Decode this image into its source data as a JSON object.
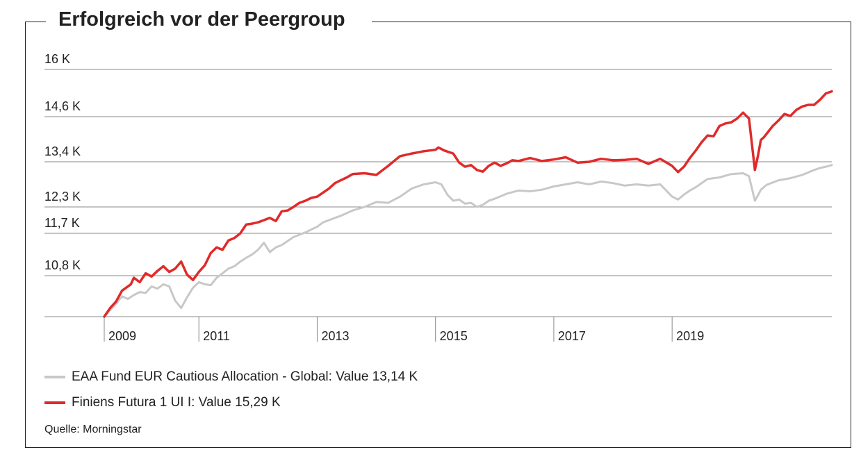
{
  "title": "Erfolgreich vor der Peergroup",
  "source": "Quelle: Morningstar",
  "colors": {
    "fund": "#e02a2a",
    "peer": "#c8c8c8",
    "grid": "#888888",
    "text": "#222222"
  },
  "legend": [
    {
      "label": "EAA Fund EUR Cautious Allocation - Global: Value 13,14 K",
      "color": "#c8c8c8"
    },
    {
      "label": "Finiens Futura 1 UI I: Value 15,29 K",
      "color": "#e02a2a"
    }
  ],
  "chart_data": {
    "type": "line",
    "y_ticks": [
      {
        "label": "10,8 K",
        "value": 10.8
      },
      {
        "label": "11,7 K",
        "value": 11.7
      },
      {
        "label": "12,3 K",
        "value": 12.3
      },
      {
        "label": "13,4 K",
        "value": 13.4
      },
      {
        "label": "14,6 K",
        "value": 14.6
      },
      {
        "label": "16 K",
        "value": 16.0
      }
    ],
    "x_ticks": [
      {
        "label": "2009",
        "value": 2009.0
      },
      {
        "label": "2011",
        "value": 2010.6
      },
      {
        "label": "2013",
        "value": 2012.6
      },
      {
        "label": "2015",
        "value": 2014.6
      },
      {
        "label": "2017",
        "value": 2016.6
      },
      {
        "label": "2019",
        "value": 2018.6
      }
    ],
    "xlim": [
      2009.0,
      2021.3
    ],
    "series": [
      {
        "name": "Finiens Futura 1 UI I",
        "color": "#e02a2a",
        "x": [
          2009.0,
          2009.1,
          2009.2,
          2009.3,
          2009.35,
          2009.45,
          2009.5,
          2009.6,
          2009.7,
          2009.8,
          2009.9,
          2010.0,
          2010.1,
          2010.2,
          2010.3,
          2010.4,
          2010.5,
          2010.6,
          2010.7,
          2010.8,
          2010.9,
          2011.0,
          2011.1,
          2011.2,
          2011.3,
          2011.4,
          2011.5,
          2011.6,
          2011.7,
          2011.8,
          2011.9,
          2012.0,
          2012.1,
          2012.2,
          2012.3,
          2012.4,
          2012.5,
          2012.6,
          2012.7,
          2012.8,
          2012.9,
          2013.0,
          2013.1,
          2013.2,
          2013.4,
          2013.6,
          2013.8,
          2014.0,
          2014.2,
          2014.4,
          2014.6,
          2014.65,
          2014.75,
          2014.9,
          2015.0,
          2015.1,
          2015.2,
          2015.3,
          2015.4,
          2015.5,
          2015.6,
          2015.7,
          2015.8,
          2015.9,
          2016.0,
          2016.2,
          2016.4,
          2016.6,
          2016.8,
          2017.0,
          2017.2,
          2017.4,
          2017.6,
          2017.8,
          2018.0,
          2018.2,
          2018.4,
          2018.6,
          2018.7,
          2018.8,
          2018.9,
          2019.0,
          2019.1,
          2019.2,
          2019.3,
          2019.4,
          2019.5,
          2019.6,
          2019.7,
          2019.8,
          2019.9,
          2020.0,
          2020.05,
          2020.1,
          2020.15,
          2020.2,
          2020.3,
          2020.4,
          2020.5,
          2020.6,
          2020.7,
          2020.8,
          2020.9,
          2021.0,
          2021.1,
          2021.2,
          2021.3
        ],
        "y": [
          9.85,
          10.05,
          10.2,
          10.45,
          10.5,
          10.6,
          10.75,
          10.65,
          10.85,
          10.78,
          10.9,
          11.0,
          10.88,
          10.95,
          11.1,
          10.82,
          10.7,
          10.88,
          11.02,
          11.28,
          11.4,
          11.35,
          11.55,
          11.6,
          11.7,
          11.9,
          11.92,
          11.95,
          12.0,
          12.05,
          11.98,
          12.2,
          12.22,
          12.3,
          12.4,
          12.45,
          12.52,
          12.55,
          12.65,
          12.75,
          12.88,
          12.95,
          13.02,
          13.1,
          13.12,
          13.08,
          13.3,
          13.55,
          13.62,
          13.68,
          13.72,
          13.78,
          13.7,
          13.62,
          13.38,
          13.28,
          13.32,
          13.2,
          13.16,
          13.3,
          13.38,
          13.3,
          13.36,
          13.44,
          13.42,
          13.5,
          13.42,
          13.46,
          13.52,
          13.38,
          13.4,
          13.48,
          13.44,
          13.45,
          13.48,
          13.35,
          13.48,
          13.3,
          13.15,
          13.28,
          13.5,
          13.7,
          13.92,
          14.1,
          14.08,
          14.35,
          14.42,
          14.45,
          14.55,
          14.72,
          14.55,
          13.2,
          13.55,
          13.98,
          14.05,
          14.15,
          14.35,
          14.5,
          14.68,
          14.62,
          14.8,
          14.9,
          14.95,
          14.95,
          15.1,
          15.29,
          15.35
        ],
        "comment": "values in thousands (K)"
      },
      {
        "name": "EAA Fund EUR Cautious Allocation - Global",
        "color": "#c8c8c8",
        "x": [
          2009.0,
          2009.1,
          2009.2,
          2009.3,
          2009.4,
          2009.5,
          2009.6,
          2009.7,
          2009.8,
          2009.9,
          2010.0,
          2010.1,
          2010.2,
          2010.3,
          2010.4,
          2010.5,
          2010.6,
          2010.7,
          2010.8,
          2010.9,
          2011.0,
          2011.1,
          2011.2,
          2011.3,
          2011.4,
          2011.5,
          2011.6,
          2011.7,
          2011.8,
          2011.9,
          2012.0,
          2012.2,
          2012.4,
          2012.6,
          2012.7,
          2012.8,
          2012.9,
          2013.0,
          2013.2,
          2013.4,
          2013.6,
          2013.8,
          2014.0,
          2014.2,
          2014.4,
          2014.6,
          2014.7,
          2014.8,
          2014.9,
          2015.0,
          2015.1,
          2015.2,
          2015.3,
          2015.4,
          2015.5,
          2015.6,
          2015.8,
          2016.0,
          2016.2,
          2016.4,
          2016.6,
          2016.8,
          2017.0,
          2017.2,
          2017.4,
          2017.6,
          2017.8,
          2018.0,
          2018.2,
          2018.4,
          2018.6,
          2018.7,
          2018.8,
          2018.9,
          2019.0,
          2019.2,
          2019.4,
          2019.6,
          2019.8,
          2019.9,
          2020.0,
          2020.05,
          2020.1,
          2020.2,
          2020.4,
          2020.6,
          2020.8,
          2020.9,
          2021.0,
          2021.1,
          2021.2,
          2021.3
        ],
        "y": [
          9.85,
          10.0,
          10.15,
          10.32,
          10.26,
          10.35,
          10.42,
          10.4,
          10.55,
          10.5,
          10.6,
          10.55,
          10.22,
          10.05,
          10.3,
          10.52,
          10.65,
          10.6,
          10.58,
          10.75,
          10.85,
          10.95,
          11.0,
          11.1,
          11.18,
          11.25,
          11.35,
          11.5,
          11.3,
          11.4,
          11.45,
          11.62,
          11.72,
          11.85,
          11.95,
          12.0,
          12.05,
          12.1,
          12.22,
          12.3,
          12.42,
          12.4,
          12.55,
          12.75,
          12.85,
          12.9,
          12.85,
          12.6,
          12.45,
          12.48,
          12.38,
          12.4,
          12.3,
          12.35,
          12.45,
          12.5,
          12.62,
          12.7,
          12.68,
          12.72,
          12.8,
          12.85,
          12.9,
          12.85,
          12.92,
          12.88,
          12.82,
          12.85,
          12.82,
          12.85,
          12.55,
          12.48,
          12.6,
          12.7,
          12.78,
          12.98,
          13.02,
          13.1,
          13.12,
          13.05,
          12.45,
          12.58,
          12.72,
          12.84,
          12.95,
          13.0,
          13.08,
          13.14,
          13.2,
          13.25,
          13.28,
          13.32
        ],
        "comment": "values in thousands (K)"
      }
    ]
  }
}
